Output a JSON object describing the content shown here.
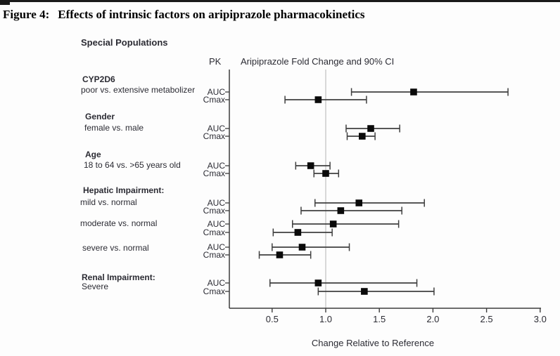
{
  "figure": {
    "label": "Figure 4:",
    "title": "Effects of intrinsic factors on aripiprazole pharmacokinetics"
  },
  "chart_data": {
    "type": "scatter",
    "variant": "forest-plot",
    "section_title": "Special Populations",
    "pk_header": "PK",
    "ci_header": "Aripiprazole Fold Change and 90% CI",
    "xlabel": "Change Relative to Reference",
    "x_ticks": [
      "0.5",
      "1.0",
      "1.5",
      "2.0",
      "2.5",
      "3.0"
    ],
    "x_tick_values": [
      0.5,
      1.0,
      1.5,
      2.0,
      2.5,
      3.0
    ],
    "xlim": [
      0.1,
      3.02
    ],
    "reference_line": 1.0,
    "grid": "off",
    "marker": "filled-square",
    "groups": [
      {
        "header": "CYP2D6",
        "comparison": "poor vs. extensive metabolizer",
        "rows": [
          {
            "pk": "AUC",
            "fold_change": 1.82,
            "ci_low": 1.24,
            "ci_high": 2.7
          },
          {
            "pk": "Cmax",
            "fold_change": 0.93,
            "ci_low": 0.62,
            "ci_high": 1.38
          }
        ]
      },
      {
        "header": "Gender",
        "comparison": "female vs. male",
        "rows": [
          {
            "pk": "AUC",
            "fold_change": 1.42,
            "ci_low": 1.19,
            "ci_high": 1.69
          },
          {
            "pk": "Cmax",
            "fold_change": 1.34,
            "ci_low": 1.2,
            "ci_high": 1.46
          }
        ]
      },
      {
        "header": "Age",
        "comparison": "18 to 64 vs. >65 years old",
        "rows": [
          {
            "pk": "AUC",
            "fold_change": 0.86,
            "ci_low": 0.72,
            "ci_high": 1.04
          },
          {
            "pk": "Cmax",
            "fold_change": 1.0,
            "ci_low": 0.89,
            "ci_high": 1.12
          }
        ]
      },
      {
        "header": "Hepatic Impairment:",
        "comparison": "mild vs. normal",
        "rows": [
          {
            "pk": "AUC",
            "fold_change": 1.31,
            "ci_low": 0.9,
            "ci_high": 1.92
          },
          {
            "pk": "Cmax",
            "fold_change": 1.14,
            "ci_low": 0.77,
            "ci_high": 1.71
          }
        ]
      },
      {
        "header": null,
        "comparison": "moderate vs. normal",
        "rows": [
          {
            "pk": "AUC",
            "fold_change": 1.07,
            "ci_low": 0.69,
            "ci_high": 1.68
          },
          {
            "pk": "Cmax",
            "fold_change": 0.74,
            "ci_low": 0.51,
            "ci_high": 1.06
          }
        ]
      },
      {
        "header": null,
        "comparison": "severe vs. normal",
        "rows": [
          {
            "pk": "AUC",
            "fold_change": 0.78,
            "ci_low": 0.5,
            "ci_high": 1.22
          },
          {
            "pk": "Cmax",
            "fold_change": 0.57,
            "ci_low": 0.38,
            "ci_high": 0.86
          }
        ]
      },
      {
        "header": "Renal Impairment:",
        "comparison": "Severe",
        "rows": [
          {
            "pk": "AUC",
            "fold_change": 0.93,
            "ci_low": 0.48,
            "ci_high": 1.85
          },
          {
            "pk": "Cmax",
            "fold_change": 1.36,
            "ci_low": 0.93,
            "ci_high": 2.01
          }
        ]
      }
    ],
    "colors": {
      "marker": "#0a0a0a",
      "ci_line": "#3f3f3f",
      "axis": "#3c3c3c",
      "reference_line": "#cccccc",
      "text": "#2b2b33"
    }
  }
}
